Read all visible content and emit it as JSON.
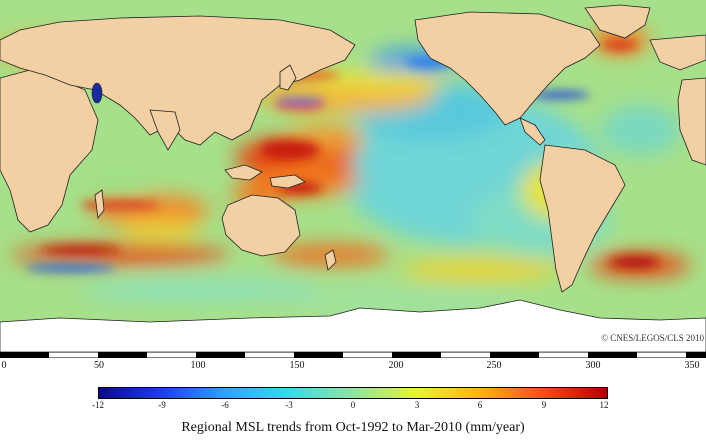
{
  "map": {
    "type": "global sea level trend map",
    "credit": "© CNES/LEGOS/CLS 2010",
    "longitude_ticks": [
      "0",
      "50",
      "100",
      "150",
      "200",
      "250",
      "300",
      "350"
    ],
    "colors": {
      "land": "#f3cfa4",
      "ice": "#ffffff",
      "coast": "#202020"
    }
  },
  "colorbar": {
    "ticks": [
      "-12",
      "-9",
      "-6",
      "-3",
      "0",
      "3",
      "6",
      "9",
      "12"
    ],
    "stops": [
      "#0a0a8c",
      "#1f3fe6",
      "#2ea3ff",
      "#3fd8e8",
      "#8ee6a0",
      "#e8f23a",
      "#ffb020",
      "#f05018",
      "#b00000"
    ]
  },
  "caption": "Regional MSL trends from Oct-1992 to Mar-2010 (mm/year)"
}
